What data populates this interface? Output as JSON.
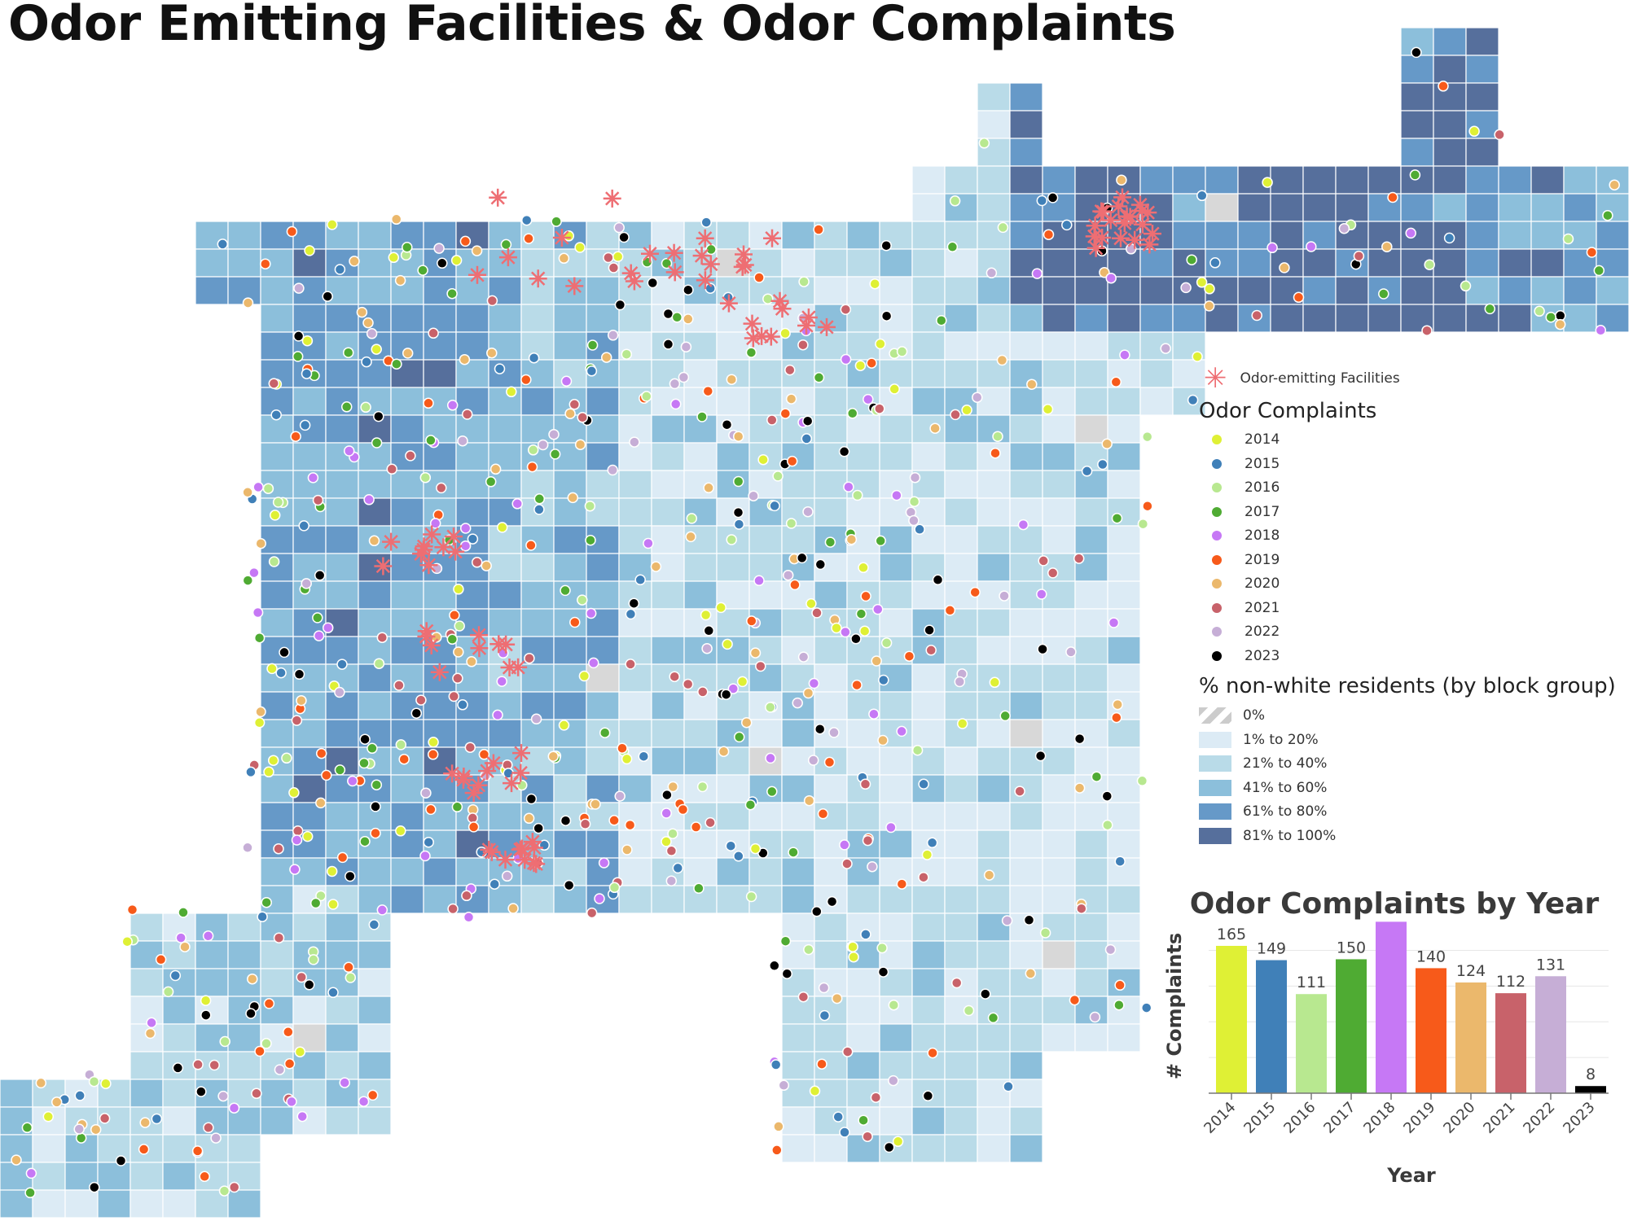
{
  "title": "Odor Emitting Facilities & Odor Complaints",
  "legend": {
    "facilities_label": "Odor-emitting Facilities",
    "facility_color": "#ee6e73",
    "complaints_heading": "Odor Complaints",
    "years": [
      {
        "label": "2014",
        "color": "#dff035"
      },
      {
        "label": "2015",
        "color": "#4080b8"
      },
      {
        "label": "2016",
        "color": "#b8e890"
      },
      {
        "label": "2017",
        "color": "#4fab33"
      },
      {
        "label": "2018",
        "color": "#c678f5"
      },
      {
        "label": "2019",
        "color": "#f75a1a"
      },
      {
        "label": "2020",
        "color": "#ebb86c"
      },
      {
        "label": "2021",
        "color": "#c8626a"
      },
      {
        "label": "2022",
        "color": "#c6aed6"
      },
      {
        "label": "2023",
        "color": "#000000"
      }
    ],
    "nonwhite_heading": "% non-white residents (by block group)",
    "classes": [
      {
        "label": "0%",
        "color": "hatch"
      },
      {
        "label": "1% to 20%",
        "color": "#dcebf5"
      },
      {
        "label": "21% to 40%",
        "color": "#b9dbe8"
      },
      {
        "label": "41% to 60%",
        "color": "#8cbfdb"
      },
      {
        "label": "61% to 80%",
        "color": "#6699c8"
      },
      {
        "label": "81% to 100%",
        "color": "#566f9c"
      }
    ]
  },
  "chart_data": {
    "type": "bar",
    "title": "Odor Complaints by Year",
    "xlabel": "Year",
    "ylabel": "# Complaints",
    "categories": [
      "2014",
      "2015",
      "2016",
      "2017",
      "2018",
      "2019",
      "2020",
      "2021",
      "2022",
      "2023"
    ],
    "values": [
      165,
      149,
      111,
      150,
      192,
      140,
      124,
      112,
      131,
      8
    ],
    "data_labels": [
      "165",
      "149",
      "111",
      "150",
      "",
      "140",
      "124",
      "112",
      "131",
      "8"
    ],
    "colors": [
      "#dff035",
      "#4080b8",
      "#b8e890",
      "#4fab33",
      "#c678f5",
      "#f75a1a",
      "#ebb86c",
      "#c8626a",
      "#c6aed6",
      "#000000"
    ],
    "ylim": [
      0,
      200
    ],
    "grid": true,
    "gridlines": [
      40,
      80,
      120,
      160
    ]
  }
}
